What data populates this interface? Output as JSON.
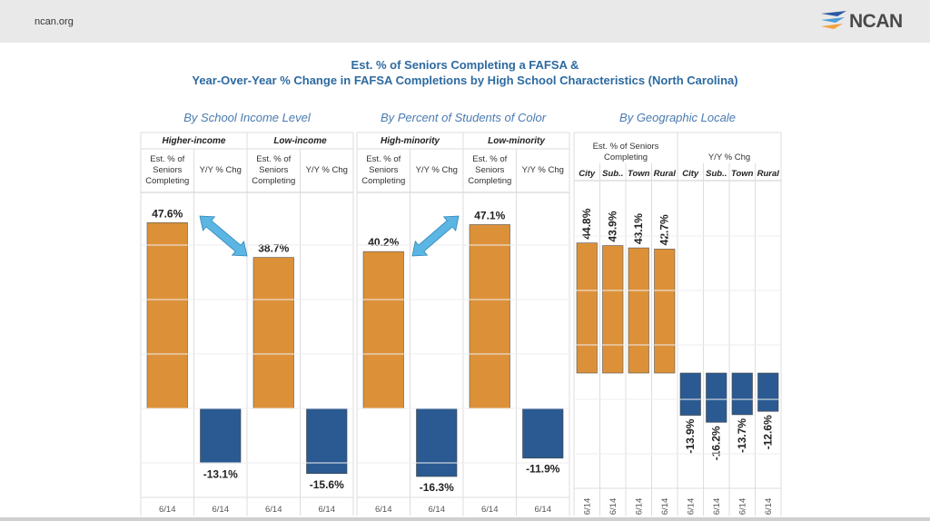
{
  "header": {
    "site": "ncan.org",
    "logo_text": "NCAN"
  },
  "title_line1": "Est. % of Seniors Completing a FAFSA &",
  "title_line2": "Year-Over-Year % Change in FAFSA Completions by High School Characteristics (North Carolina)",
  "colors": {
    "orange": "#dc9139",
    "blue": "#2b5a92",
    "arrow": "#5bb6e3"
  },
  "chart_data": [
    {
      "type": "bar",
      "title": "By School Income Level",
      "groups": [
        {
          "name": "Higher-income",
          "pct_label": "Est. % of Seniors Completing",
          "chg_label": "Y/Y % Chg",
          "pct": 47.6,
          "chg": -13.1
        },
        {
          "name": "Low-income",
          "pct_label": "Est. % of Seniors Completing",
          "chg_label": "Y/Y % Chg",
          "pct": 38.7,
          "chg": -15.6
        }
      ],
      "date_labels": [
        "6/14",
        "6/14",
        "6/14",
        "6/14"
      ]
    },
    {
      "type": "bar",
      "title": "By Percent of Students of Color",
      "groups": [
        {
          "name": "High-minority",
          "pct_label": "Est. % of Seniors Completing",
          "chg_label": "Y/Y % Chg",
          "pct": 40.2,
          "chg": -16.3
        },
        {
          "name": "Low-minority",
          "pct_label": "Est. % of Seniors Completing",
          "chg_label": "Y/Y % Chg",
          "pct": 47.1,
          "chg": -11.9
        }
      ],
      "date_labels": [
        "6/14",
        "6/14",
        "6/14",
        "6/14"
      ]
    },
    {
      "type": "bar",
      "title": "By Geographic Locale",
      "pct_header": "Est. % of Seniors Completing",
      "chg_header": "Y/Y % Chg",
      "categories": [
        "City",
        "Sub..",
        "Town",
        "Rural"
      ],
      "pct": [
        44.8,
        43.9,
        43.1,
        42.7
      ],
      "chg": [
        -13.9,
        -16.2,
        -13.7,
        -12.6
      ],
      "date_labels": [
        "6/14",
        "6/14",
        "6/14",
        "6/14",
        "6/14",
        "6/14",
        "6/14",
        "6/14"
      ]
    }
  ]
}
